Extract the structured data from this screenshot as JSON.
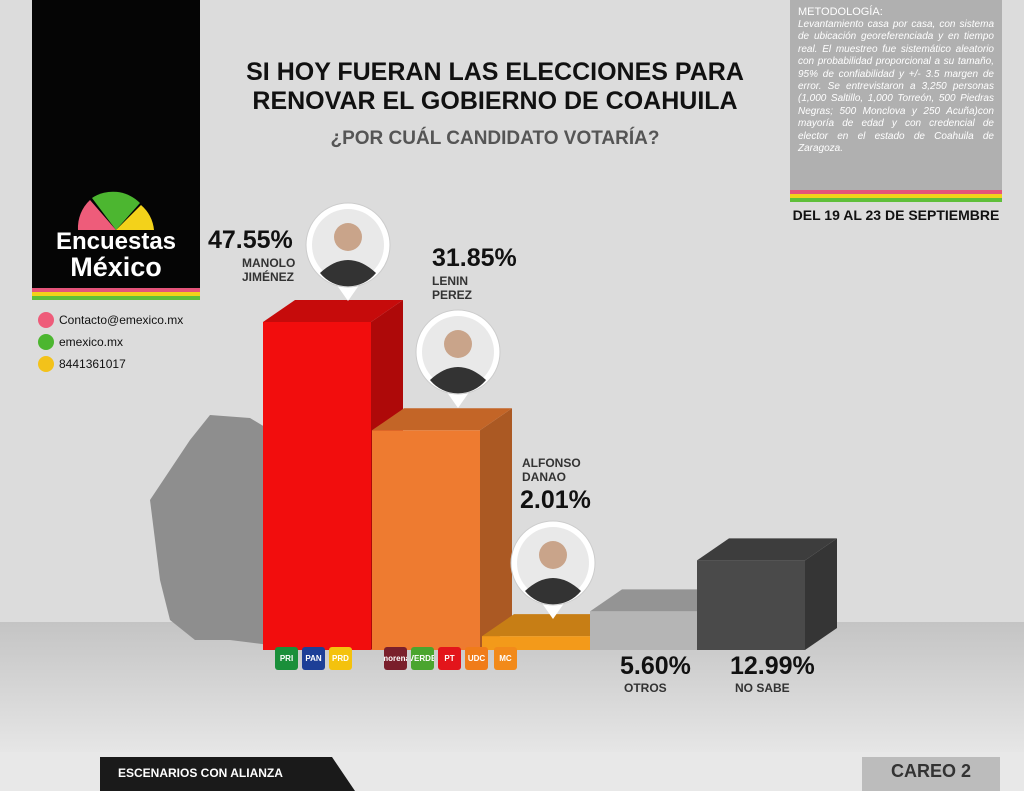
{
  "title": "SI HOY FUERAN LAS ELECCIONES PARA RENOVAR EL GOBIERNO DE COAHUILA",
  "subtitle": "¿POR CUÁL CANDIDATO VOTARÍA?",
  "methodology": {
    "title": "METODOLOGÍA:",
    "body": "Levantamiento casa por casa, con sistema de ubicación georeferenciada y en tiempo real. El muestreo fue sistemático aleatorio con probabilidad proporcional a su tamaño, 95% de confiabilidad y +/- 3.5 margen de error. Se entrevistaron a 3,250 personas (1,000 Saltillo, 1,000 Torreón, 500 Piedras Negras; 500 Monclova y 250 Acuña)con mayoría de edad y con credencial de elector en el estado de Coahuila de Zaragoza."
  },
  "date": "DEL 19 AL 23 DE SEPTIEMBRE",
  "logo": {
    "line1": "Encuestas",
    "line2": "México"
  },
  "contact": {
    "email": "Contacto@emexico.mx",
    "web": "emexico.mx",
    "phone": "8441361017"
  },
  "footer": {
    "left": "ESCENARIOS CON ALIANZA",
    "right": "CAREO 2"
  },
  "parties": [
    [
      "PRI",
      "PAN",
      "PRD"
    ],
    [
      "morena",
      "VERDE",
      "PT",
      "UDC"
    ],
    [
      "MC"
    ],
    [],
    []
  ],
  "chart_data": {
    "type": "bar3d",
    "categories": [
      "MANOLO JIMÉNEZ",
      "LENIN PEREZ",
      "ALFONSO DANAO",
      "OTROS",
      "NO SABE"
    ],
    "values": [
      47.55,
      31.85,
      2.01,
      5.6,
      12.99
    ],
    "value_labels": [
      "47.55%",
      "31.85%",
      "2.01%",
      "5.60%",
      "12.99%"
    ],
    "colors": [
      "#f20d0d",
      "#ee7b30",
      "#f39a1a",
      "#b5b5b5",
      "#4a4a4a"
    ]
  }
}
